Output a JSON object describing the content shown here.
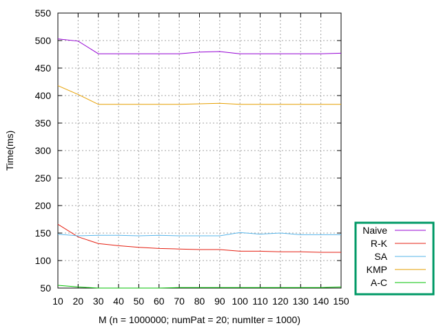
{
  "chart_data": {
    "type": "line",
    "xlabel": "M (n = 1000000; numPat = 20; numIter = 1000)",
    "ylabel": "Time(ms)",
    "xlim": [
      10,
      150
    ],
    "ylim": [
      50,
      550
    ],
    "x": [
      10,
      20,
      30,
      40,
      50,
      60,
      70,
      80,
      90,
      100,
      110,
      120,
      130,
      140,
      150
    ],
    "xticks": [
      10,
      20,
      30,
      40,
      50,
      60,
      70,
      80,
      90,
      100,
      110,
      120,
      130,
      140,
      150
    ],
    "yticks": [
      50,
      100,
      150,
      200,
      250,
      300,
      350,
      400,
      450,
      500,
      550
    ],
    "grid": true,
    "legend_position": "bottom-right outside",
    "legend_border_color": "#009966",
    "series": [
      {
        "name": "Naive",
        "color": "#9400d3",
        "values": [
          503,
          499,
          476,
          476,
          476,
          476,
          476,
          479,
          480,
          476,
          476,
          476,
          476,
          476,
          477
        ]
      },
      {
        "name": "R-K",
        "color": "#e51e10",
        "values": [
          166,
          143,
          131,
          127,
          124,
          122,
          121,
          120,
          120,
          117,
          117,
          116,
          116,
          115,
          115
        ]
      },
      {
        "name": "SA",
        "color": "#56b4e9",
        "values": [
          148,
          145,
          146,
          146,
          145,
          146,
          145,
          145,
          145,
          151,
          148,
          150,
          147,
          147,
          147
        ]
      },
      {
        "name": "KMP",
        "color": "#e69f00",
        "values": [
          418,
          402,
          384,
          384,
          384,
          384,
          384,
          385,
          386,
          384,
          384,
          384,
          384,
          384,
          384
        ]
      },
      {
        "name": "A-C",
        "color": "#00c000",
        "values": [
          55,
          52,
          50,
          50,
          50,
          50,
          51,
          51,
          51,
          51,
          51,
          51,
          51,
          51,
          52
        ]
      }
    ]
  }
}
